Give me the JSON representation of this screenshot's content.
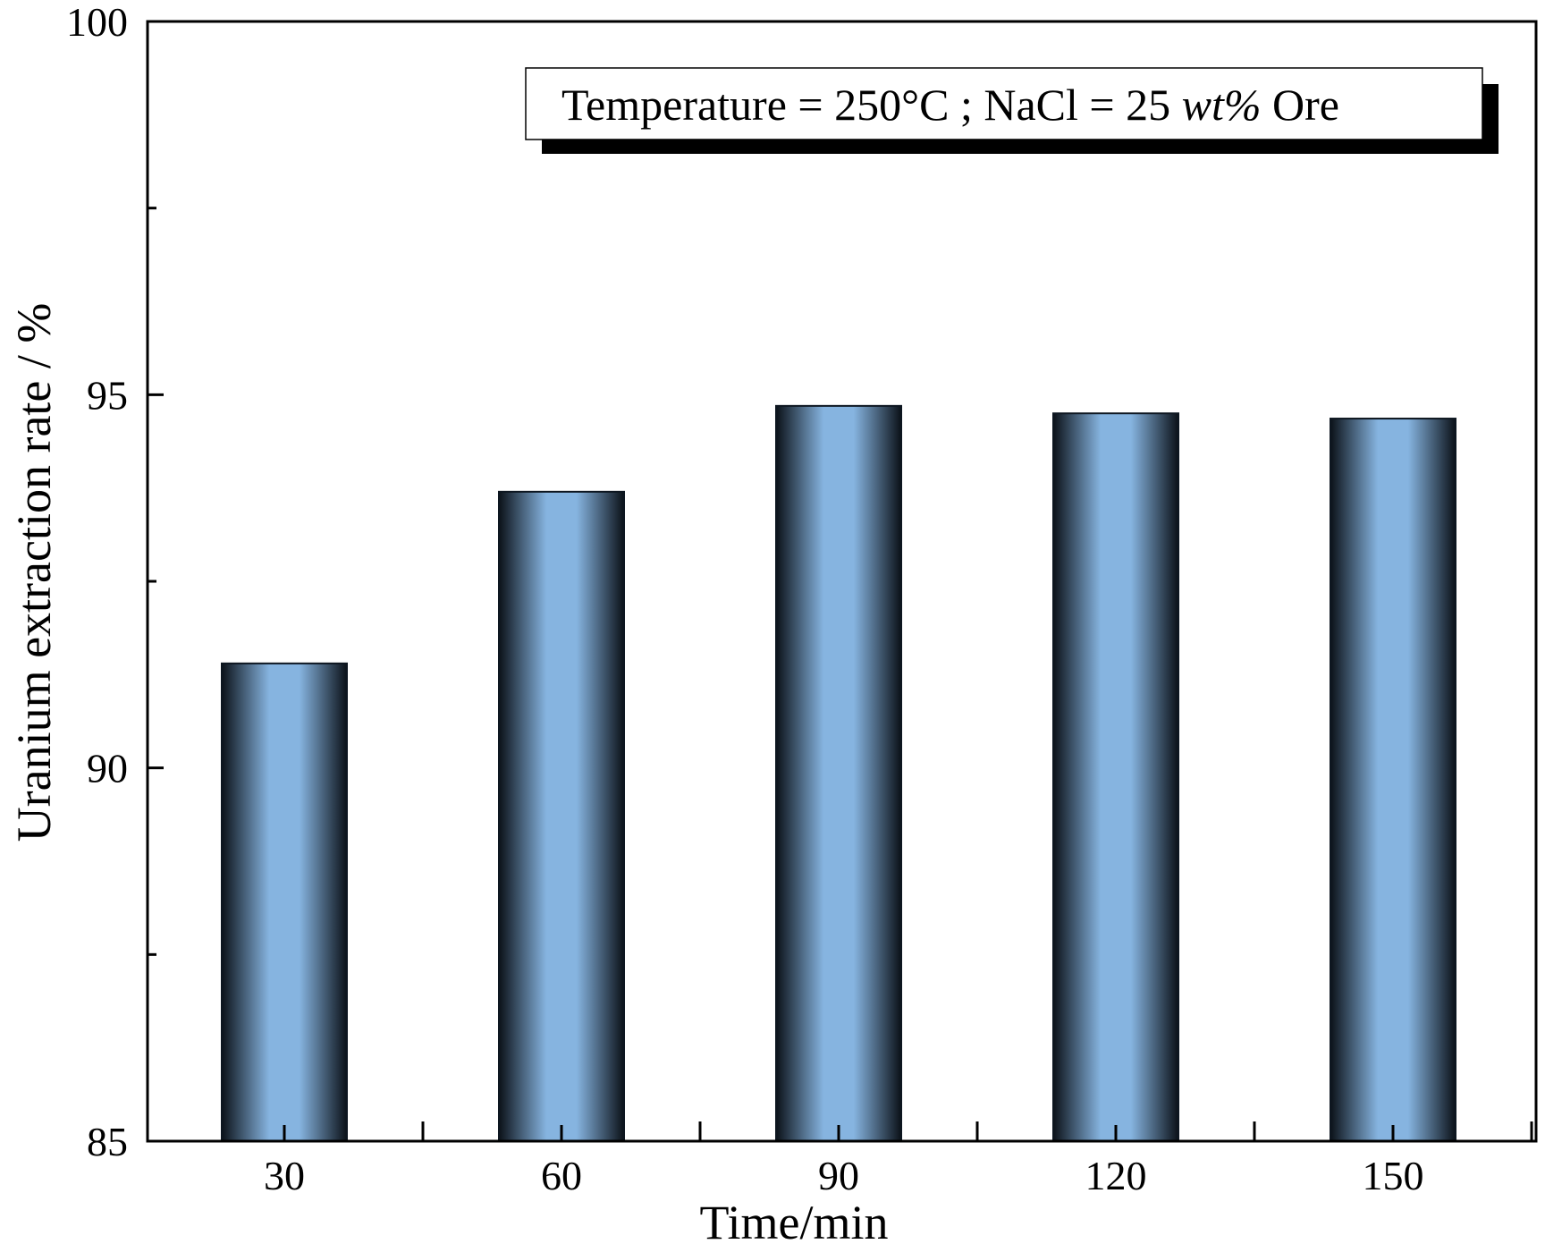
{
  "chart_data": {
    "type": "bar",
    "title": "",
    "xlabel": "Time/min",
    "ylabel": "Uranium extraction rate / %",
    "categories": [
      "30",
      "60",
      "90",
      "120",
      "150"
    ],
    "values": [
      91.4,
      93.7,
      94.85,
      94.75,
      94.68
    ],
    "ylim": [
      85,
      100
    ],
    "y_ticks": [
      "85",
      "90",
      "95",
      "100"
    ],
    "y_minor_tick_step": 2.5,
    "grid": false,
    "bar_color": "#86b4e0",
    "bar_edge_color": "#0d1620",
    "annotation": {
      "prefix": "Temperature = 250°C ; NaCl = 25 ",
      "italic": "wt%",
      "suffix": " Ore",
      "placement": "top-right"
    }
  }
}
